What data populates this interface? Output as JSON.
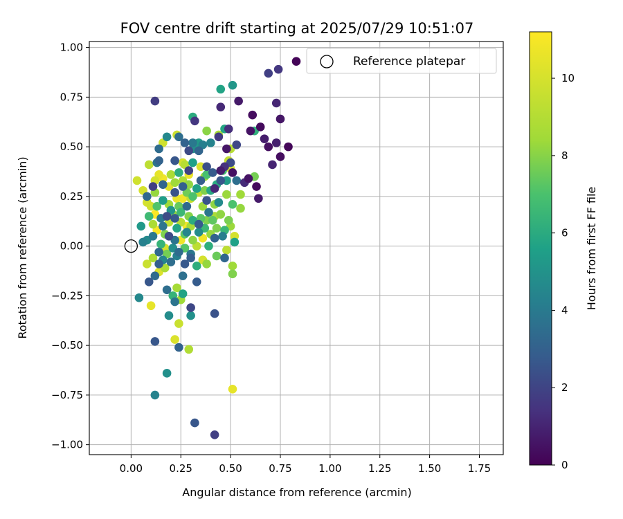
{
  "chart_data": {
    "type": "scatter",
    "title": "FOV centre drift starting at 2025/07/29 10:51:07",
    "xlabel": "Angular distance from reference (arcmin)",
    "ylabel": "Rotation from reference (arcmin)",
    "xlim": [
      -0.21,
      1.87
    ],
    "ylim": [
      -1.05,
      1.03
    ],
    "x_ticks": [
      0.0,
      0.25,
      0.5,
      0.75,
      1.0,
      1.25,
      1.5,
      1.75
    ],
    "x_tick_labels": [
      "0.00",
      "0.25",
      "0.50",
      "0.75",
      "1.00",
      "1.25",
      "1.50",
      "1.75"
    ],
    "y_ticks": [
      -1.0,
      -0.75,
      -0.5,
      -0.25,
      0.0,
      0.25,
      0.5,
      0.75,
      1.0
    ],
    "y_tick_labels": [
      "−1.00",
      "−0.75",
      "−0.50",
      "−0.25",
      "0.00",
      "0.25",
      "0.50",
      "0.75",
      "1.00"
    ],
    "grid": true,
    "legend_position": "top-right",
    "legend_entries": [
      "Reference platepar"
    ],
    "reference_point": {
      "x": 0.0,
      "y": 0.0
    },
    "colorbar": {
      "label": "Hours from first FF file",
      "colormap": "viridis",
      "range": [
        0,
        11.2
      ],
      "ticks": [
        0,
        2,
        4,
        6,
        8,
        10
      ],
      "tick_labels": [
        "0",
        "2",
        "4",
        "6",
        "8",
        "10"
      ]
    },
    "points": [
      [
        0.83,
        0.93,
        0.1
      ],
      [
        0.74,
        0.89,
        1.8
      ],
      [
        0.69,
        0.87,
        2.1
      ],
      [
        0.73,
        0.72,
        1.2
      ],
      [
        0.75,
        0.64,
        0.7
      ],
      [
        0.61,
        0.66,
        0.4
      ],
      [
        0.54,
        0.73,
        0.8
      ],
      [
        0.45,
        0.7,
        1.3
      ],
      [
        0.6,
        0.58,
        0.6
      ],
      [
        0.65,
        0.6,
        0.3
      ],
      [
        0.67,
        0.54,
        0.9
      ],
      [
        0.69,
        0.5,
        0.5
      ],
      [
        0.73,
        0.52,
        1.0
      ],
      [
        0.79,
        0.5,
        0.2
      ],
      [
        0.75,
        0.45,
        0.4
      ],
      [
        0.71,
        0.41,
        1.1
      ],
      [
        0.49,
        0.59,
        1.5
      ],
      [
        0.44,
        0.55,
        1.9
      ],
      [
        0.53,
        0.51,
        2.4
      ],
      [
        0.48,
        0.49,
        0.7
      ],
      [
        0.5,
        0.42,
        2.6
      ],
      [
        0.47,
        0.4,
        1.6
      ],
      [
        0.45,
        0.38,
        0.9
      ],
      [
        0.51,
        0.37,
        0.5
      ],
      [
        0.57,
        0.32,
        1.4
      ],
      [
        0.59,
        0.34,
        0.6
      ],
      [
        0.63,
        0.3,
        0.3
      ],
      [
        0.64,
        0.24,
        0.8
      ],
      [
        0.45,
        0.33,
        3.0
      ],
      [
        0.42,
        0.29,
        1.2
      ],
      [
        0.38,
        0.4,
        2.7
      ],
      [
        0.35,
        0.33,
        3.3
      ],
      [
        0.29,
        0.38,
        2.2
      ],
      [
        0.26,
        0.3,
        3.4
      ],
      [
        0.22,
        0.27,
        2.8
      ],
      [
        0.16,
        0.31,
        3.6
      ],
      [
        0.11,
        0.3,
        2.1
      ],
      [
        0.08,
        0.25,
        3.7
      ],
      [
        0.13,
        0.42,
        4.3
      ],
      [
        0.22,
        0.43,
        3.0
      ],
      [
        0.29,
        0.48,
        2.5
      ],
      [
        0.31,
        0.52,
        4.5
      ],
      [
        0.32,
        0.63,
        1.8
      ],
      [
        0.12,
        0.73,
        2.0
      ],
      [
        0.14,
        0.49,
        3.9
      ],
      [
        0.18,
        0.55,
        5.2
      ],
      [
        0.24,
        0.55,
        4.0
      ],
      [
        0.27,
        0.52,
        3.5
      ],
      [
        0.31,
        0.49,
        5.6
      ],
      [
        0.34,
        0.52,
        6.0
      ],
      [
        0.36,
        0.51,
        4.8
      ],
      [
        0.31,
        0.65,
        6.9
      ],
      [
        0.45,
        0.79,
        6.5
      ],
      [
        0.51,
        0.81,
        5.9
      ],
      [
        0.47,
        0.59,
        6.6
      ],
      [
        0.62,
        0.58,
        7.1
      ],
      [
        0.44,
        0.56,
        9.7
      ],
      [
        0.4,
        0.52,
        5.0
      ],
      [
        0.38,
        0.58,
        9.2
      ],
      [
        0.23,
        0.56,
        10.3
      ],
      [
        0.16,
        0.52,
        10.4
      ],
      [
        0.09,
        0.41,
        10.1
      ],
      [
        0.14,
        0.43,
        3.5
      ],
      [
        0.2,
        0.36,
        9.8
      ],
      [
        0.24,
        0.37,
        7.0
      ],
      [
        0.27,
        0.41,
        10.0
      ],
      [
        0.31,
        0.42,
        6.4
      ],
      [
        0.35,
        0.4,
        10.6
      ],
      [
        0.37,
        0.35,
        9.6
      ],
      [
        0.41,
        0.37,
        3.2
      ],
      [
        0.46,
        0.38,
        7.8
      ],
      [
        0.49,
        0.43,
        10.2
      ],
      [
        0.5,
        0.49,
        10.0
      ],
      [
        0.5,
        0.39,
        10.4
      ],
      [
        0.53,
        0.33,
        4.0
      ],
      [
        0.55,
        0.26,
        9.6
      ],
      [
        0.62,
        0.35,
        8.8
      ],
      [
        0.55,
        0.19,
        9.4
      ],
      [
        0.51,
        0.21,
        8.0
      ],
      [
        0.48,
        0.26,
        9.5
      ],
      [
        0.44,
        0.22,
        5.3
      ],
      [
        0.42,
        0.21,
        9.3
      ],
      [
        0.4,
        0.28,
        6.7
      ],
      [
        0.38,
        0.23,
        2.9
      ],
      [
        0.36,
        0.2,
        9.5
      ],
      [
        0.33,
        0.29,
        6.4
      ],
      [
        0.3,
        0.24,
        10.2
      ],
      [
        0.28,
        0.2,
        3.8
      ],
      [
        0.26,
        0.24,
        11.0
      ],
      [
        0.23,
        0.24,
        10.9
      ],
      [
        0.21,
        0.16,
        9.4
      ],
      [
        0.18,
        0.15,
        2.6
      ],
      [
        0.15,
        0.14,
        4.5
      ],
      [
        0.12,
        0.16,
        11.2
      ],
      [
        0.1,
        0.2,
        10.4
      ],
      [
        0.08,
        0.22,
        10.5
      ],
      [
        0.06,
        0.28,
        10.5
      ],
      [
        0.03,
        0.33,
        10.4
      ],
      [
        0.12,
        0.33,
        10.5
      ],
      [
        0.14,
        0.36,
        10.8
      ],
      [
        0.16,
        0.34,
        11.0
      ],
      [
        0.19,
        0.3,
        10.7
      ],
      [
        0.22,
        0.32,
        9.6
      ],
      [
        0.26,
        0.33,
        9.8
      ],
      [
        0.29,
        0.36,
        10.9
      ],
      [
        0.11,
        0.11,
        9.8
      ],
      [
        0.13,
        0.08,
        11.1
      ],
      [
        0.16,
        0.1,
        4.3
      ],
      [
        0.19,
        0.12,
        10.1
      ],
      [
        0.22,
        0.14,
        3.1
      ],
      [
        0.25,
        0.12,
        10.0
      ],
      [
        0.28,
        0.1,
        11.0
      ],
      [
        0.31,
        0.13,
        6.9
      ],
      [
        0.34,
        0.11,
        3.2
      ],
      [
        0.37,
        0.09,
        7.5
      ],
      [
        0.4,
        0.06,
        9.4
      ],
      [
        0.43,
        0.09,
        9.0
      ],
      [
        0.47,
        0.08,
        7.4
      ],
      [
        0.5,
        0.1,
        9.5
      ],
      [
        0.52,
        0.05,
        10.5
      ],
      [
        0.05,
        0.1,
        6.0
      ],
      [
        0.08,
        0.03,
        5.3
      ],
      [
        0.11,
        0.05,
        4.5
      ],
      [
        0.14,
        -0.03,
        3.8
      ],
      [
        0.17,
        -0.01,
        10.5
      ],
      [
        0.19,
        0.05,
        2.5
      ],
      [
        0.22,
        0.03,
        4.3
      ],
      [
        0.25,
        0.03,
        11.0
      ],
      [
        0.28,
        0.07,
        5.1
      ],
      [
        0.31,
        0.03,
        9.3
      ],
      [
        0.33,
        0.0,
        10.1
      ],
      [
        0.36,
        0.04,
        11.0
      ],
      [
        0.39,
        0.0,
        7.0
      ],
      [
        0.42,
        0.04,
        3.5
      ],
      [
        0.46,
        0.05,
        4.7
      ],
      [
        0.48,
        -0.02,
        10.1
      ],
      [
        0.52,
        0.02,
        6.4
      ],
      [
        0.08,
        -0.09,
        10.3
      ],
      [
        0.11,
        -0.06,
        9.8
      ],
      [
        0.14,
        -0.09,
        3.4
      ],
      [
        0.17,
        -0.11,
        9.8
      ],
      [
        0.2,
        -0.08,
        4.0
      ],
      [
        0.23,
        -0.05,
        4.8
      ],
      [
        0.27,
        -0.09,
        3.1
      ],
      [
        0.3,
        -0.04,
        4.4
      ],
      [
        0.33,
        -0.1,
        7.0
      ],
      [
        0.36,
        -0.07,
        10.5
      ],
      [
        0.38,
        -0.09,
        9.4
      ],
      [
        0.43,
        -0.05,
        8.6
      ],
      [
        0.47,
        -0.06,
        3.7
      ],
      [
        0.51,
        -0.1,
        9.6
      ],
      [
        0.51,
        -0.14,
        9.0
      ],
      [
        0.09,
        -0.18,
        3.0
      ],
      [
        0.12,
        -0.15,
        3.9
      ],
      [
        0.14,
        -0.13,
        10.6
      ],
      [
        0.18,
        -0.22,
        4.0
      ],
      [
        0.21,
        -0.25,
        7.3
      ],
      [
        0.23,
        -0.21,
        9.7
      ],
      [
        0.25,
        -0.27,
        9.6
      ],
      [
        0.22,
        -0.28,
        4.3
      ],
      [
        0.26,
        -0.24,
        6.5
      ],
      [
        0.33,
        -0.18,
        3.2
      ],
      [
        0.04,
        -0.26,
        5.2
      ],
      [
        0.1,
        -0.3,
        10.8
      ],
      [
        0.19,
        -0.35,
        5.4
      ],
      [
        0.3,
        -0.31,
        2.4
      ],
      [
        0.3,
        -0.35,
        5.6
      ],
      [
        0.42,
        -0.34,
        2.8
      ],
      [
        0.24,
        -0.39,
        10.3
      ],
      [
        0.12,
        -0.48,
        3.0
      ],
      [
        0.22,
        -0.47,
        10.6
      ],
      [
        0.24,
        -0.51,
        3.5
      ],
      [
        0.29,
        -0.52,
        9.9
      ],
      [
        0.18,
        -0.64,
        5.6
      ],
      [
        0.12,
        -0.75,
        5.0
      ],
      [
        0.51,
        -0.72,
        10.8
      ],
      [
        0.32,
        -0.89,
        3.0
      ],
      [
        0.42,
        -0.95,
        2.1
      ],
      [
        0.06,
        0.02,
        4.9
      ],
      [
        0.13,
        0.2,
        8.1
      ],
      [
        0.17,
        0.06,
        9.0
      ],
      [
        0.2,
        0.18,
        5.8
      ],
      [
        0.24,
        0.2,
        8.5
      ],
      [
        0.29,
        0.15,
        9.1
      ],
      [
        0.35,
        0.14,
        8.3
      ],
      [
        0.39,
        0.17,
        4.4
      ],
      [
        0.41,
        0.13,
        8.4
      ],
      [
        0.45,
        0.16,
        9.3
      ],
      [
        0.49,
        0.13,
        8.9
      ],
      [
        0.23,
        0.09,
        6.6
      ],
      [
        0.27,
        0.06,
        8.3
      ],
      [
        0.3,
        0.1,
        9.7
      ],
      [
        0.34,
        0.07,
        5.4
      ],
      [
        0.38,
        0.13,
        9.0
      ],
      [
        0.42,
        0.15,
        9.8
      ],
      [
        0.09,
        0.15,
        7.6
      ],
      [
        0.12,
        0.27,
        9.4
      ],
      [
        0.16,
        0.23,
        6.2
      ],
      [
        0.19,
        0.21,
        9.6
      ],
      [
        0.25,
        0.17,
        7.5
      ],
      [
        0.28,
        0.27,
        8.7
      ],
      [
        0.31,
        0.25,
        8.0
      ],
      [
        0.34,
        0.27,
        10.1
      ],
      [
        0.37,
        0.28,
        9.0
      ],
      [
        0.43,
        0.31,
        6.8
      ],
      [
        0.21,
        -0.01,
        5.5
      ],
      [
        0.24,
        -0.03,
        3.9
      ],
      [
        0.27,
        -0.01,
        8.2
      ],
      [
        0.3,
        -0.06,
        3.3
      ],
      [
        0.18,
        -0.04,
        8.8
      ],
      [
        0.15,
        0.01,
        7.3
      ],
      [
        0.26,
        -0.15,
        4.1
      ],
      [
        0.16,
        -0.07,
        5.1
      ],
      [
        0.29,
        0.31,
        9.3
      ],
      [
        0.38,
        0.36,
        7.9
      ],
      [
        0.48,
        0.33,
        6.1
      ],
      [
        0.34,
        0.48,
        3.6
      ],
      [
        0.26,
        0.42,
        10.5
      ]
    ]
  }
}
